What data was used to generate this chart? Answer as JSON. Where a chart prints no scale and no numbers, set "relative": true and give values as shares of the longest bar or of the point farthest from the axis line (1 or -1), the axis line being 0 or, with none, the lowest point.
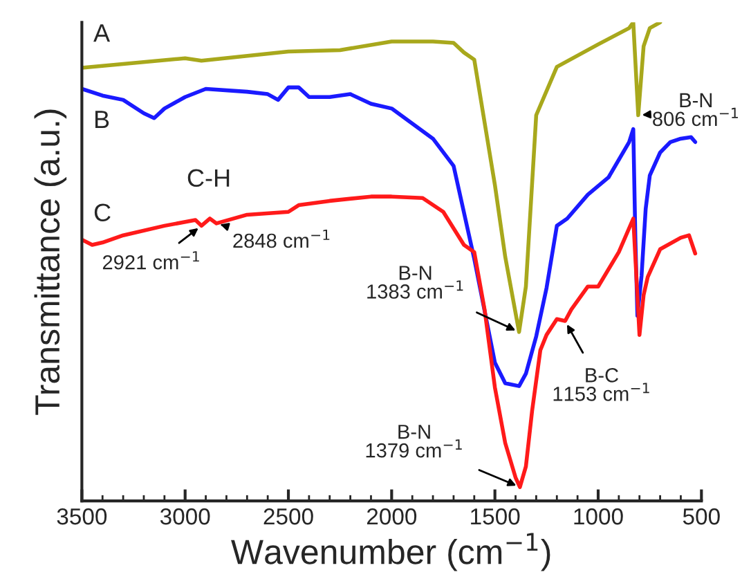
{
  "chart_data": {
    "type": "line",
    "relative": true,
    "xlabel": "Wavenumber (cm$^{−1}$)",
    "ylabel": "Transmittance (a.u.)",
    "xlim": [
      3500,
      500
    ],
    "xticks": [
      3500,
      3000,
      2500,
      2000,
      1500,
      1000,
      500
    ],
    "grid": false,
    "legend": false,
    "marker": "none",
    "line_style": "solid",
    "series": [
      {
        "name": "A",
        "color": "#a8a81c",
        "x": [
          3500,
          3000,
          2921,
          2500,
          2250,
          2000,
          1800,
          1700,
          1650,
          1600,
          1500,
          1450,
          1383,
          1350,
          1300,
          1200,
          1000,
          850,
          830,
          806,
          780,
          750,
          700
        ],
        "values": [
          0.905,
          0.925,
          0.92,
          0.939,
          0.942,
          0.96,
          0.96,
          0.957,
          0.937,
          0.922,
          0.66,
          0.51,
          0.353,
          0.448,
          0.806,
          0.907,
          0.954,
          0.988,
          1.0,
          0.806,
          0.95,
          0.988,
          1.0
        ]
      },
      {
        "name": "B",
        "color": "#1a1aff",
        "x": [
          3500,
          3400,
          3300,
          3200,
          3150,
          3100,
          3000,
          2900,
          2700,
          2600,
          2550,
          2500,
          2450,
          2400,
          2300,
          2200,
          2100,
          2000,
          1800,
          1700,
          1600,
          1500,
          1450,
          1383,
          1350,
          1300,
          1250,
          1200,
          1150,
          1050,
          950,
          850,
          830,
          820,
          810,
          790,
          770,
          750,
          700,
          650,
          600,
          550,
          530
        ],
        "values": [
          0.861,
          0.847,
          0.838,
          0.81,
          0.8,
          0.82,
          0.844,
          0.861,
          0.855,
          0.85,
          0.838,
          0.864,
          0.864,
          0.844,
          0.844,
          0.85,
          0.83,
          0.82,
          0.757,
          0.7,
          0.506,
          0.289,
          0.246,
          0.24,
          0.266,
          0.344,
          0.445,
          0.575,
          0.59,
          0.64,
          0.676,
          0.75,
          0.777,
          0.55,
          0.387,
          0.47,
          0.61,
          0.68,
          0.728,
          0.75,
          0.757,
          0.76,
          0.75
        ]
      },
      {
        "name": "C",
        "color": "#ff1a1a",
        "x": [
          3500,
          3450,
          3400,
          3300,
          3100,
          2950,
          2921,
          2880,
          2848,
          2700,
          2500,
          2450,
          2300,
          2100,
          2000,
          1850,
          1750,
          1650,
          1600,
          1550,
          1500,
          1450,
          1400,
          1379,
          1350,
          1320,
          1280,
          1250,
          1200,
          1160,
          1130,
          1050,
          1000,
          900,
          830,
          800,
          780,
          760,
          700,
          600,
          560,
          530
        ],
        "values": [
          0.546,
          0.535,
          0.54,
          0.555,
          0.575,
          0.587,
          0.575,
          0.59,
          0.58,
          0.598,
          0.604,
          0.618,
          0.627,
          0.636,
          0.636,
          0.633,
          0.604,
          0.535,
          0.52,
          0.4,
          0.237,
          0.121,
          0.049,
          0.029,
          0.072,
          0.188,
          0.315,
          0.347,
          0.38,
          0.376,
          0.4,
          0.448,
          0.448,
          0.52,
          0.59,
          0.347,
          0.43,
          0.468,
          0.526,
          0.55,
          0.555,
          0.517
        ]
      }
    ],
    "annotations": [
      {
        "text": "C-H",
        "x": 2885,
        "y": 0.59
      },
      {
        "text": "2921 cm$^{−1}$",
        "x": 2921,
        "y": 0.575
      },
      {
        "text": "2848 cm$^{−1}$",
        "x": 2848,
        "y": 0.58
      },
      {
        "text": "B-N\n1383 cm$^{−1}$",
        "x": 1383,
        "y": 0.353
      },
      {
        "text": "B-N\n1379 cm$^{−1}$",
        "x": 1379,
        "y": 0.029
      },
      {
        "text": "B-C\n1153 cm$^{−1}$",
        "x": 1160,
        "y": 0.376
      },
      {
        "text": "B-N\n806 cm$^{−1}$",
        "x": 806,
        "y": 0.806
      }
    ]
  }
}
